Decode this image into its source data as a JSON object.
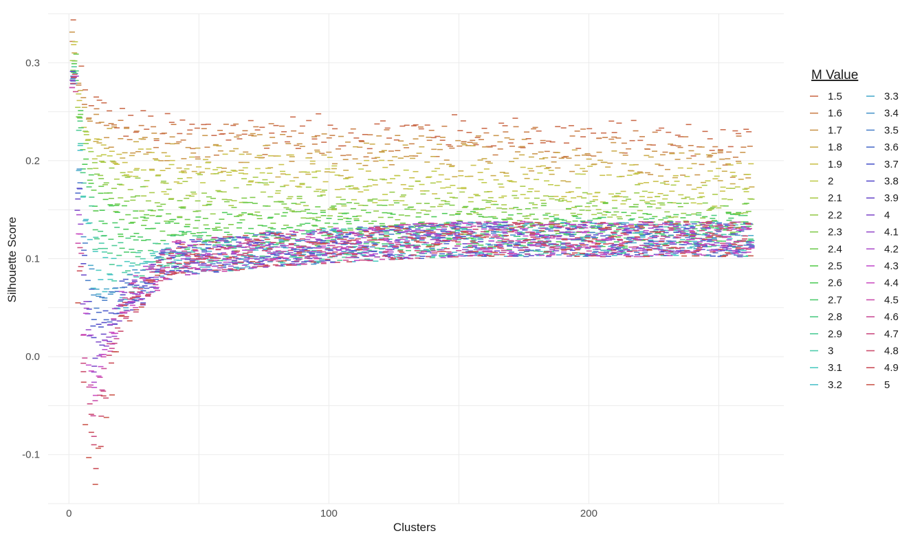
{
  "chart_data": {
    "type": "scatter",
    "title": "",
    "xlabel": "Clusters",
    "ylabel": "Silhouette Score",
    "xlim": [
      -8,
      275
    ],
    "ylim": [
      -0.15,
      0.35
    ],
    "x_ticks": [
      0,
      100,
      200
    ],
    "y_ticks": [
      -0.1,
      0.0,
      0.1,
      0.2,
      0.3
    ],
    "y_tick_labels": [
      "-0.1",
      "0.0",
      "0.1",
      "0.2",
      "0.3"
    ],
    "grid": true,
    "marker": "dash",
    "legend": {
      "title": "M Value",
      "placement": "right",
      "columns": 2,
      "entries": [
        "1.5",
        "1.6",
        "1.7",
        "1.8",
        "1.9",
        "2",
        "2.1",
        "2.2",
        "2.3",
        "2.4",
        "2.5",
        "2.6",
        "2.7",
        "2.8",
        "2.9",
        "3",
        "3.1",
        "3.2",
        "3.3",
        "3.4",
        "3.5",
        "3.6",
        "3.7",
        "3.8",
        "3.9",
        "4",
        "4.1",
        "4.2",
        "4.3",
        "4.4",
        "4.5",
        "4.6",
        "4.7",
        "4.8",
        "4.9",
        "5"
      ]
    },
    "x_range_of_points": [
      2,
      262
    ],
    "trend_by_m_value": {
      "note": "score versus cluster count per M value, read from the plot",
      "x": [
        2,
        5,
        10,
        20,
        40,
        80,
        150,
        262
      ],
      "series": [
        {
          "name": "1.5",
          "values": [
            0.34,
            0.27,
            0.26,
            0.24,
            0.23,
            0.23,
            0.23,
            0.22
          ]
        },
        {
          "name": "1.6",
          "values": [
            0.33,
            0.26,
            0.25,
            0.23,
            0.22,
            0.22,
            0.22,
            0.21
          ]
        },
        {
          "name": "1.7",
          "values": [
            0.33,
            0.26,
            0.24,
            0.22,
            0.21,
            0.21,
            0.21,
            0.2
          ]
        },
        {
          "name": "1.8",
          "values": [
            0.32,
            0.25,
            0.23,
            0.21,
            0.2,
            0.2,
            0.2,
            0.19
          ]
        },
        {
          "name": "1.9",
          "values": [
            0.32,
            0.25,
            0.22,
            0.2,
            0.19,
            0.19,
            0.18,
            0.18
          ]
        },
        {
          "name": "2",
          "values": [
            0.31,
            0.24,
            0.21,
            0.19,
            0.18,
            0.18,
            0.17,
            0.17
          ]
        },
        {
          "name": "2.1",
          "values": [
            0.31,
            0.24,
            0.2,
            0.18,
            0.17,
            0.17,
            0.16,
            0.16
          ]
        },
        {
          "name": "2.2",
          "values": [
            0.3,
            0.23,
            0.19,
            0.17,
            0.16,
            0.16,
            0.15,
            0.15
          ]
        },
        {
          "name": "2.3",
          "values": [
            0.3,
            0.23,
            0.18,
            0.16,
            0.15,
            0.15,
            0.14,
            0.14
          ]
        },
        {
          "name": "2.4",
          "values": [
            0.3,
            0.22,
            0.17,
            0.15,
            0.14,
            0.14,
            0.14,
            0.14
          ]
        },
        {
          "name": "2.5",
          "values": [
            0.3,
            0.22,
            0.16,
            0.14,
            0.13,
            0.13,
            0.13,
            0.13
          ]
        },
        {
          "name": "2.6",
          "values": [
            0.3,
            0.22,
            0.15,
            0.13,
            0.13,
            0.13,
            0.13,
            0.13
          ]
        },
        {
          "name": "2.7",
          "values": [
            0.29,
            0.21,
            0.14,
            0.12,
            0.12,
            0.12,
            0.12,
            0.13
          ]
        },
        {
          "name": "2.8",
          "values": [
            0.29,
            0.2,
            0.13,
            0.11,
            0.11,
            0.11,
            0.12,
            0.13
          ]
        },
        {
          "name": "2.9",
          "values": [
            0.29,
            0.19,
            0.12,
            0.1,
            0.1,
            0.11,
            0.12,
            0.12
          ]
        },
        {
          "name": "3",
          "values": [
            0.28,
            0.18,
            0.11,
            0.09,
            0.1,
            0.11,
            0.12,
            0.12
          ]
        },
        {
          "name": "3.1",
          "values": [
            0.28,
            0.17,
            0.1,
            0.08,
            0.1,
            0.11,
            0.12,
            0.12
          ]
        },
        {
          "name": "3.2",
          "values": [
            0.28,
            0.16,
            0.08,
            0.07,
            0.1,
            0.11,
            0.12,
            0.12
          ]
        },
        {
          "name": "3.3",
          "values": [
            0.28,
            0.15,
            0.07,
            0.06,
            0.1,
            0.11,
            0.12,
            0.12
          ]
        },
        {
          "name": "3.4",
          "values": [
            0.28,
            0.14,
            0.06,
            0.06,
            0.1,
            0.11,
            0.12,
            0.12
          ]
        },
        {
          "name": "3.5",
          "values": [
            0.28,
            0.13,
            0.05,
            0.06,
            0.1,
            0.11,
            0.12,
            0.12
          ]
        },
        {
          "name": "3.6",
          "values": [
            0.28,
            0.12,
            0.04,
            0.06,
            0.1,
            0.11,
            0.12,
            0.12
          ]
        },
        {
          "name": "3.7",
          "values": [
            0.28,
            0.11,
            0.03,
            0.06,
            0.1,
            0.11,
            0.12,
            0.12
          ]
        },
        {
          "name": "3.8",
          "values": [
            0.28,
            0.1,
            0.02,
            0.05,
            0.1,
            0.11,
            0.12,
            0.12
          ]
        },
        {
          "name": "3.9",
          "values": [
            0.28,
            0.09,
            0.01,
            0.05,
            0.1,
            0.11,
            0.12,
            0.12
          ]
        },
        {
          "name": "4",
          "values": [
            0.28,
            0.08,
            0.0,
            0.05,
            0.1,
            0.11,
            0.12,
            0.12
          ]
        },
        {
          "name": "4.1",
          "values": [
            0.28,
            0.07,
            -0.01,
            0.05,
            0.1,
            0.11,
            0.12,
            0.12
          ]
        },
        {
          "name": "4.2",
          "values": [
            0.28,
            0.06,
            -0.02,
            0.05,
            0.1,
            0.11,
            0.12,
            0.12
          ]
        },
        {
          "name": "4.3",
          "values": [
            0.28,
            0.05,
            -0.03,
            0.05,
            0.1,
            0.11,
            0.12,
            0.12
          ]
        },
        {
          "name": "4.4",
          "values": [
            0.28,
            0.04,
            -0.04,
            0.05,
            0.1,
            0.11,
            0.12,
            0.12
          ]
        },
        {
          "name": "4.5",
          "values": [
            0.28,
            0.03,
            -0.05,
            0.05,
            0.1,
            0.11,
            0.12,
            0.12
          ]
        },
        {
          "name": "4.6",
          "values": [
            0.28,
            0.02,
            -0.06,
            0.05,
            0.1,
            0.11,
            0.12,
            0.12
          ]
        },
        {
          "name": "4.7",
          "values": [
            0.28,
            0.01,
            -0.07,
            0.04,
            0.1,
            0.11,
            0.12,
            0.12
          ]
        },
        {
          "name": "4.8",
          "values": [
            0.28,
            0.0,
            -0.09,
            0.04,
            0.1,
            0.11,
            0.12,
            0.12
          ]
        },
        {
          "name": "4.9",
          "values": [
            0.28,
            -0.02,
            -0.11,
            0.04,
            0.1,
            0.11,
            0.12,
            0.12
          ]
        },
        {
          "name": "5",
          "values": [
            0.28,
            -0.04,
            -0.13,
            0.04,
            0.1,
            0.11,
            0.12,
            0.12
          ]
        }
      ]
    }
  }
}
